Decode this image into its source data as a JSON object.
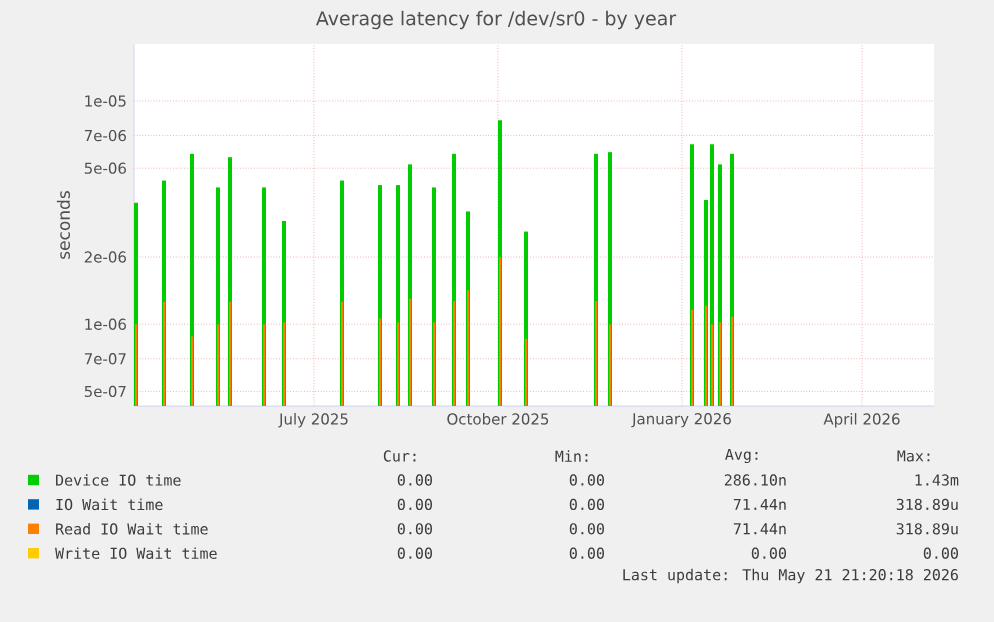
{
  "chart_data": {
    "type": "bar",
    "title": "Average latency for /dev/sr0 - by year",
    "ylabel": "seconds",
    "log": "y",
    "grid": true,
    "legend": "bottom",
    "x": [
      "2025-04-03",
      "2025-04-17",
      "2025-05-01",
      "2025-05-14",
      "2025-05-20",
      "2025-06-06",
      "2025-06-16",
      "2025-07-15",
      "2025-08-03",
      "2025-08-12",
      "2025-08-18",
      "2025-08-30",
      "2025-09-09",
      "2025-09-16",
      "2025-10-02",
      "2025-10-15",
      "2025-11-19",
      "2025-11-26",
      "2026-01-06",
      "2026-01-13",
      "2026-01-16",
      "2026-01-20",
      "2026-01-26"
    ],
    "xlim": [
      "2025-04-02",
      "2026-05-07"
    ],
    "xticks": [
      {
        "value": "2025-07-01",
        "label": "July 2025"
      },
      {
        "value": "2025-10-01",
        "label": "October 2025"
      },
      {
        "value": "2026-01-01",
        "label": "January 2026"
      },
      {
        "value": "2026-04-01",
        "label": "April 2026"
      }
    ],
    "ylim": [
      4.3e-07,
      1.8e-05
    ],
    "yticks": [
      {
        "value": 5e-07,
        "label": "5e-07"
      },
      {
        "value": 7e-07,
        "label": "7e-07"
      },
      {
        "value": 1e-06,
        "label": "1e-06"
      },
      {
        "value": 2e-06,
        "label": "2e-06"
      },
      {
        "value": 5e-06,
        "label": "5e-06"
      },
      {
        "value": 7e-06,
        "label": "7e-06"
      },
      {
        "value": 1e-05,
        "label": "1e-05"
      }
    ],
    "series": [
      {
        "name": "Device IO time",
        "color": "#00cc00",
        "values": [
          3.5e-06,
          4.4e-06,
          5.8e-06,
          4.1e-06,
          5.6e-06,
          4.1e-06,
          2.9e-06,
          4.4e-06,
          4.2e-06,
          4.2e-06,
          5.2e-06,
          4.1e-06,
          5.8e-06,
          3.2e-06,
          8.2e-06,
          2.6e-06,
          5.8e-06,
          5.9e-06,
          6.4e-06,
          3.6e-06,
          6.4e-06,
          5.2e-06,
          5.8e-06
        ]
      },
      {
        "name": "IO Wait time",
        "color": "#0066b3",
        "values": [
          null,
          null,
          null,
          null,
          null,
          null,
          null,
          null,
          null,
          null,
          null,
          null,
          null,
          null,
          null,
          null,
          null,
          null,
          null,
          null,
          null,
          null,
          null
        ]
      },
      {
        "name": "Read IO Wait time",
        "color": "#ff8000",
        "values": [
          1e-06,
          1.26e-06,
          8.8e-07,
          1e-06,
          1.26e-06,
          1e-06,
          1.02e-06,
          1.26e-06,
          1.06e-06,
          1.02e-06,
          1.3e-06,
          1.02e-06,
          1.27e-06,
          1.42e-06,
          2e-06,
          8.6e-07,
          1.27e-06,
          1e-06,
          1.16e-06,
          1.21e-06,
          1e-06,
          1.02e-06,
          1.08e-06
        ]
      },
      {
        "name": "Write IO Wait time",
        "color": "#ffcc00",
        "values": [
          null,
          null,
          null,
          null,
          null,
          null,
          null,
          null,
          null,
          null,
          null,
          null,
          null,
          null,
          null,
          null,
          null,
          null,
          null,
          null,
          null,
          null,
          null
        ]
      }
    ],
    "annotations": [
      "Cur:",
      "Min:",
      "Avg:",
      "Max:",
      "0.00",
      "0.00",
      "286.10n",
      "1.43m",
      "0.00",
      "0.00",
      "71.44n",
      "318.89u",
      "0.00",
      "0.00",
      "71.44n",
      "318.89u",
      "0.00",
      "0.00",
      "0.00",
      "0.00",
      "Last update: Thu May 21 21:20:18 2026"
    ]
  }
}
